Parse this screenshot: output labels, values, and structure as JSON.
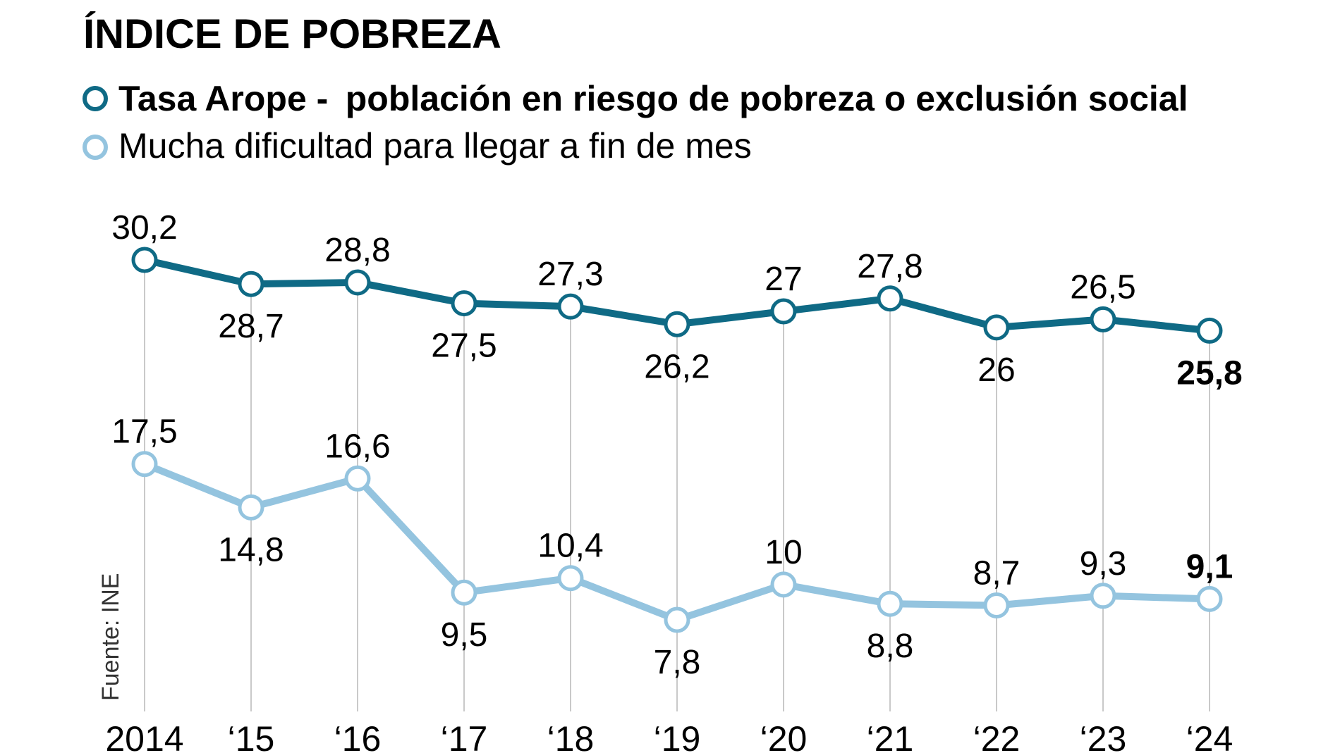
{
  "chart_data": {
    "type": "line",
    "title": "ÍNDICE DE POBREZA",
    "source": "Fuente: INE",
    "categories": [
      "2014",
      "‘15",
      "‘16",
      "‘17",
      "‘18",
      "‘19",
      "‘20",
      "‘21",
      "‘22",
      "‘23",
      "‘24"
    ],
    "series": [
      {
        "name": "Tasa Arope - población en riesgo de pobreza o exclusión social",
        "legend_bold": "Tasa Arope -",
        "legend_rest": "población en riesgo de pobreza o exclusión social",
        "color": "#0f6a85",
        "values": [
          30.2,
          28.7,
          28.8,
          27.5,
          27.3,
          26.2,
          27,
          27.8,
          26,
          26.5,
          25.8
        ],
        "labels": [
          "30,2",
          "28,7",
          "28,8",
          "27,5",
          "27,3",
          "26,2",
          "27",
          "27,8",
          "26",
          "26,5",
          "25,8"
        ],
        "label_positions": [
          "above",
          "below",
          "above",
          "below",
          "above",
          "below",
          "above",
          "above",
          "below",
          "above",
          "below"
        ]
      },
      {
        "name": "Mucha dificultad para llegar a fin de mes",
        "color": "#94c4df",
        "values": [
          17.5,
          14.8,
          16.6,
          9.5,
          10.4,
          7.8,
          10,
          8.8,
          8.7,
          9.3,
          9.1
        ],
        "labels": [
          "17,5",
          "14,8",
          "16,6",
          "9,5",
          "10,4",
          "7,8",
          "10",
          "8,8",
          "8,7",
          "9,3",
          "9,1"
        ],
        "label_positions": [
          "above",
          "below",
          "above",
          "below",
          "above",
          "below",
          "above",
          "below",
          "above",
          "above",
          "above"
        ]
      }
    ],
    "ylim": [
      6,
      31
    ],
    "grid": "vertical",
    "legend": "top-left",
    "xlabel": "",
    "ylabel": ""
  }
}
